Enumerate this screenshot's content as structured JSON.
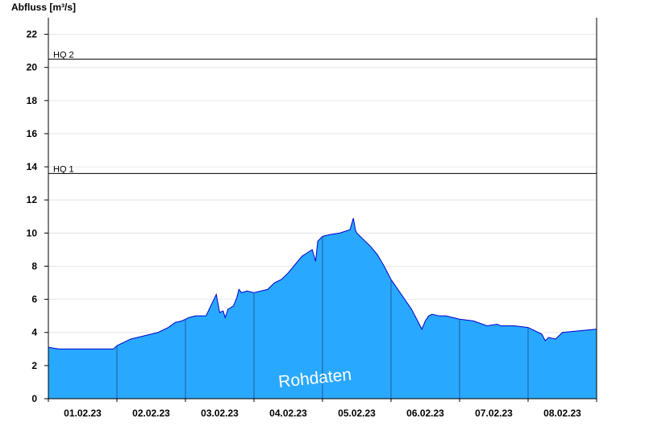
{
  "chart_data": {
    "type": "area",
    "ylabel": "Abfluss [m³/s]",
    "ylim": [
      0,
      23
    ],
    "yticks": [
      0,
      2,
      4,
      6,
      8,
      10,
      12,
      14,
      16,
      18,
      20,
      22
    ],
    "grid": true,
    "x_tick_labels": [
      "01.02.23",
      "02.02.23",
      "03.02.23",
      "04.02.23",
      "05.02.23",
      "06.02.23",
      "07.02.23",
      "08.02.23"
    ],
    "thresholds": [
      {
        "label": "HQ 2",
        "value": 20.5
      },
      {
        "label": "HQ 1",
        "value": 13.6
      }
    ],
    "watermark": "Rohdaten",
    "colors": {
      "fill": "#29a8ff",
      "line": "#0000cc",
      "grid": "#e6e6e6",
      "threshold": "#000000"
    },
    "series": [
      {
        "x": [
          0,
          0.15,
          0.95,
          1.0,
          1.1,
          1.2,
          1.4,
          1.6,
          1.75,
          1.85,
          1.95,
          2.05,
          2.15,
          2.3,
          2.45,
          2.5,
          2.55,
          2.58,
          2.62,
          2.7,
          2.75,
          2.78,
          2.82,
          2.9,
          3.0,
          3.2,
          3.3,
          3.4,
          3.5,
          3.7,
          3.85,
          3.9,
          3.93,
          4.0,
          4.1,
          4.25,
          4.4,
          4.45,
          4.48,
          4.5,
          4.55,
          4.6,
          4.7,
          4.8,
          4.9,
          5.0,
          5.1,
          5.2,
          5.3,
          5.4,
          5.45,
          5.5,
          5.55,
          5.6,
          5.7,
          5.8,
          6.0,
          6.2,
          6.4,
          6.55,
          6.6,
          6.8,
          7.0,
          7.1,
          7.2,
          7.25,
          7.3,
          7.4,
          7.5,
          8.0
        ],
        "y": [
          3.1,
          3.0,
          3.0,
          3.2,
          3.4,
          3.6,
          3.8,
          4.0,
          4.3,
          4.6,
          4.7,
          4.9,
          5.0,
          5.0,
          6.3,
          5.2,
          5.3,
          4.9,
          5.4,
          5.6,
          6.1,
          6.6,
          6.4,
          6.5,
          6.4,
          6.6,
          7.0,
          7.2,
          7.6,
          8.6,
          9.0,
          8.3,
          9.5,
          9.8,
          9.9,
          10.0,
          10.2,
          10.9,
          10.2,
          10.0,
          9.8,
          9.6,
          9.2,
          8.7,
          8.0,
          7.2,
          6.6,
          6.0,
          5.4,
          4.6,
          4.2,
          4.7,
          5.0,
          5.1,
          5.0,
          5.0,
          4.8,
          4.7,
          4.4,
          4.5,
          4.4,
          4.4,
          4.3,
          4.1,
          3.9,
          3.5,
          3.7,
          3.6,
          4.0,
          4.2
        ]
      }
    ]
  }
}
